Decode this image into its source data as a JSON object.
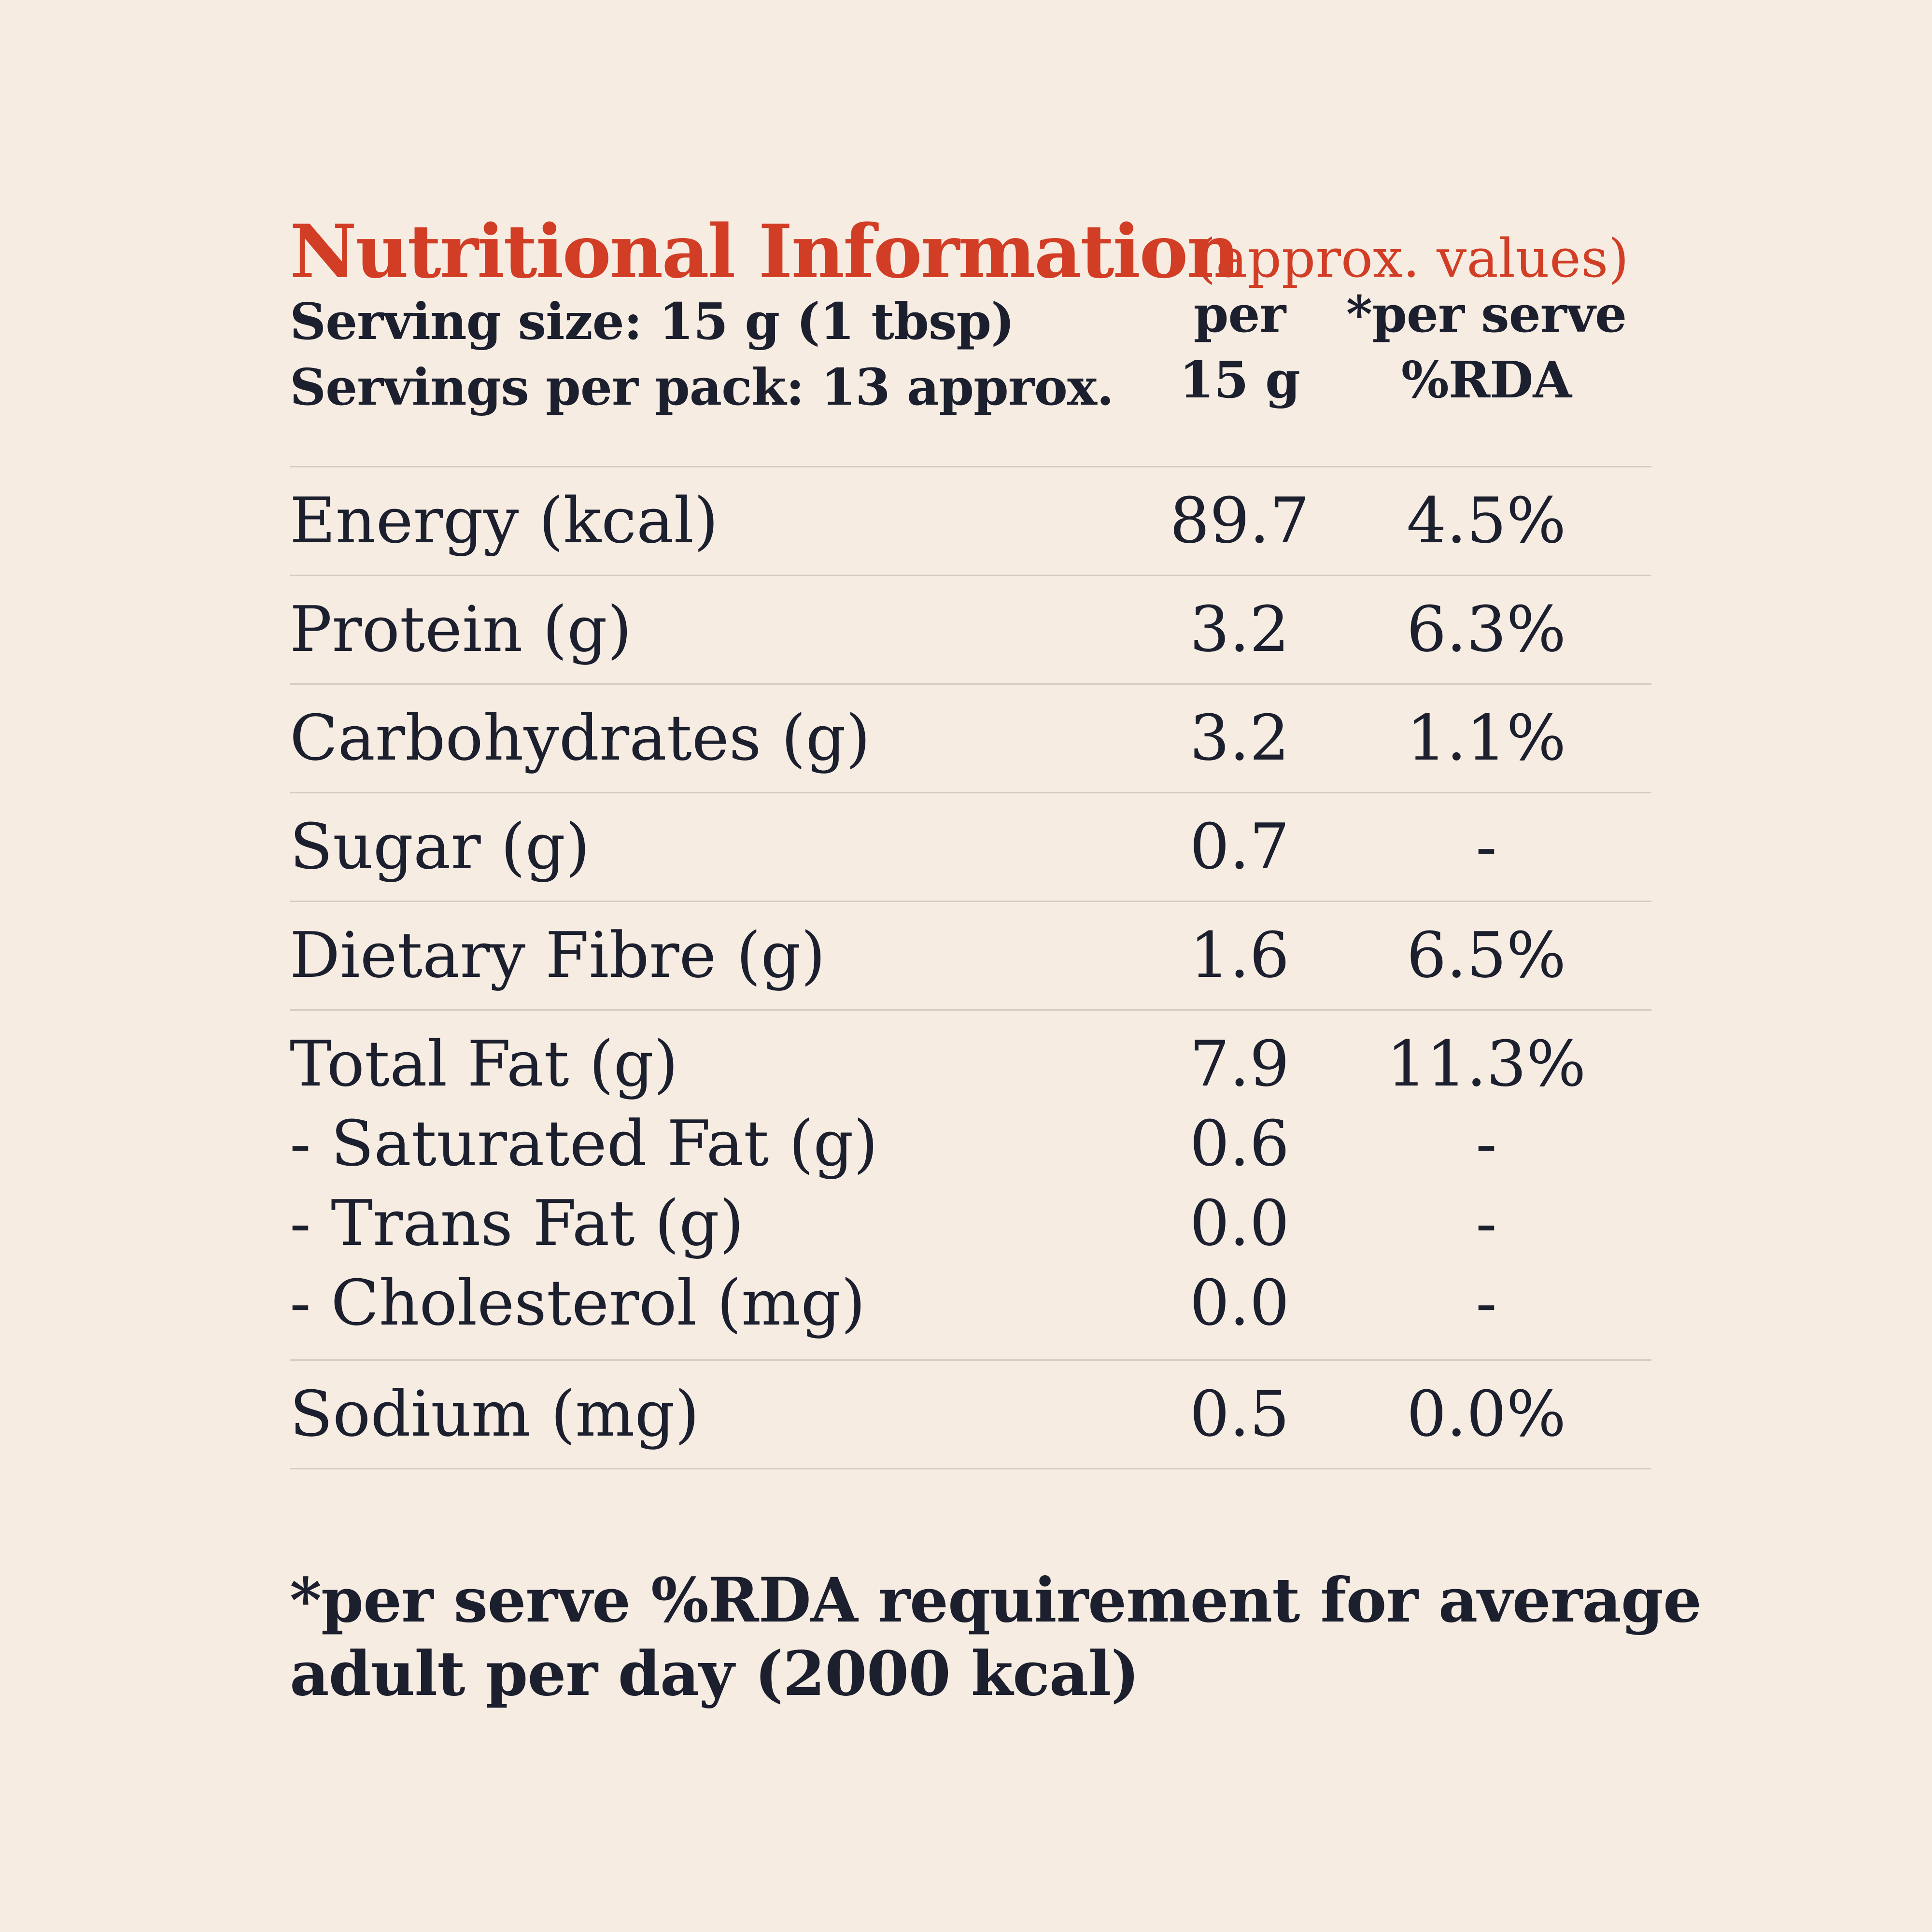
{
  "title": "Nutritional Information",
  "subtitle": "(approx. values)",
  "header": {
    "serving_size": "Serving size: 15 g (1 tbsp)",
    "servings_per_pack": "Servings per pack: 13 approx.",
    "col1_line1": "per",
    "col1_line2": "15 g",
    "col2_line1": "*per serve",
    "col2_line2": "%RDA"
  },
  "rows": [
    {
      "label": "Energy (kcal)",
      "per15g": "89.7",
      "rda": "4.5%"
    },
    {
      "label": "Protein (g)",
      "per15g": "3.2",
      "rda": "6.3%"
    },
    {
      "label": "Carbohydrates (g)",
      "per15g": "3.2",
      "rda": "1.1%"
    },
    {
      "label": "Sugar (g)",
      "per15g": "0.7",
      "rda": "-"
    },
    {
      "label": "Dietary Fibre (g)",
      "per15g": "1.6",
      "rda": "6.5%"
    }
  ],
  "fat": [
    {
      "label": "Total Fat (g)",
      "per15g": "7.9",
      "rda": "11.3%"
    },
    {
      "label": "- Saturated Fat (g)",
      "per15g": "0.6",
      "rda": "-"
    },
    {
      "label": "- Trans Fat (g)",
      "per15g": "0.0",
      "rda": "-"
    },
    {
      "label": "- Cholesterol (mg)",
      "per15g": "0.0",
      "rda": "-"
    }
  ],
  "sodium": {
    "label": "Sodium (mg)",
    "per15g": "0.5",
    "rda": "0.0%"
  },
  "footnote": {
    "line1": "*per serve %RDA requirement for average",
    "line2": "adult per day (2000 kcal)"
  }
}
